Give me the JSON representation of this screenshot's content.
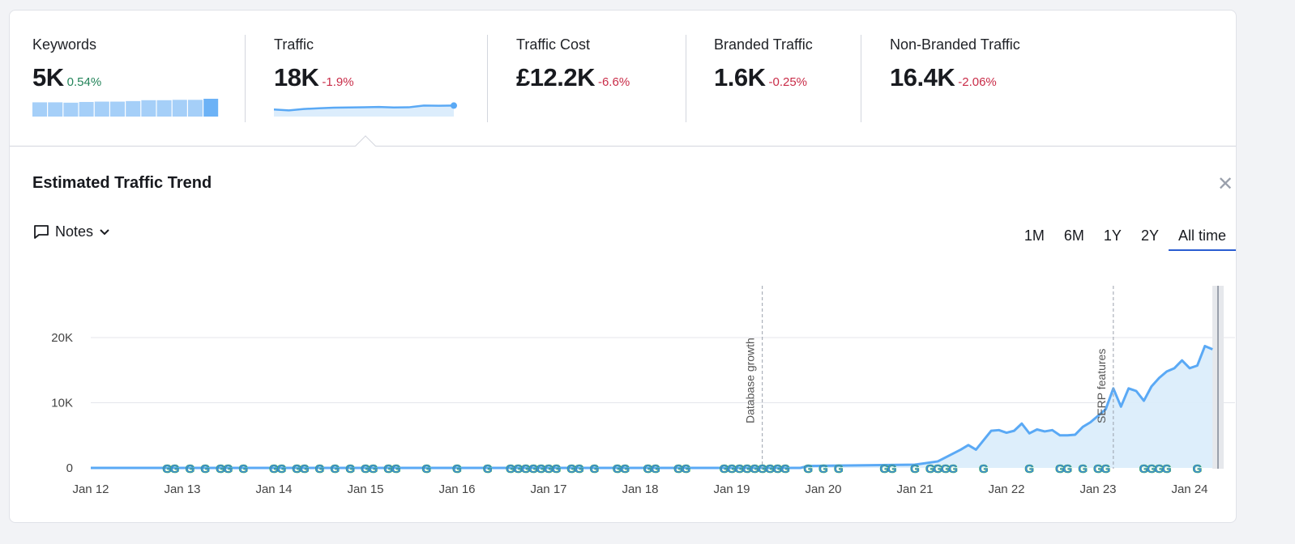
{
  "metrics": [
    {
      "label": "Keywords",
      "value": "5K",
      "change": "0.54%",
      "trend": "up"
    },
    {
      "label": "Traffic",
      "value": "18K",
      "change": "-1.9%",
      "trend": "down"
    },
    {
      "label": "Traffic Cost",
      "value": "£12.2K",
      "change": "-6.6%",
      "trend": "down"
    },
    {
      "label": "Branded Traffic",
      "value": "1.6K",
      "change": "-0.25%",
      "trend": "down"
    },
    {
      "label": "Non-Branded Traffic",
      "value": "16.4K",
      "change": "-2.06%",
      "trend": "down"
    }
  ],
  "keyword_sparkbars": [
    80,
    80,
    78,
    82,
    84,
    84,
    87,
    92,
    92,
    94,
    94,
    100
  ],
  "traffic_sparkline": [
    40,
    30,
    45,
    52,
    58,
    60,
    62,
    66,
    60,
    62,
    80,
    78,
    80
  ],
  "colors": {
    "accent": "#5aa9f5",
    "fill": "#d9ecfb",
    "up": "#24845a",
    "down": "#c92c48",
    "tab_active": "#2a5dd1"
  },
  "panel": {
    "title": "Estimated Traffic Trend",
    "close_icon": "close-icon",
    "notes_label": "Notes"
  },
  "ranges": [
    "1M",
    "6M",
    "1Y",
    "2Y",
    "All time"
  ],
  "active_range": "All time",
  "chart_data": {
    "type": "area",
    "x_ticks": [
      "Jan 12",
      "Jan 13",
      "Jan 14",
      "Jan 15",
      "Jan 16",
      "Jan 17",
      "Jan 18",
      "Jan 19",
      "Jan 20",
      "Jan 21",
      "Jan 22",
      "Jan 23",
      "Jan 24"
    ],
    "y_ticks": [
      "0",
      "10K",
      "20K"
    ],
    "ylim": [
      0,
      20000
    ],
    "grid": true,
    "points": [
      [
        "2012-01",
        0
      ],
      [
        "2019-10",
        0
      ],
      [
        "2019-11",
        300
      ],
      [
        "2021-01",
        500
      ],
      [
        "2021-04",
        1000
      ],
      [
        "2021-07",
        2800
      ],
      [
        "2021-08",
        3500
      ],
      [
        "2021-09",
        2800
      ],
      [
        "2021-11",
        5700
      ],
      [
        "2021-12",
        5800
      ],
      [
        "2022-01",
        5400
      ],
      [
        "2022-02",
        5700
      ],
      [
        "2022-03",
        6800
      ],
      [
        "2022-04",
        5300
      ],
      [
        "2022-05",
        5900
      ],
      [
        "2022-06",
        5600
      ],
      [
        "2022-07",
        5800
      ],
      [
        "2022-08",
        5000
      ],
      [
        "2022-09",
        5000
      ],
      [
        "2022-10",
        5100
      ],
      [
        "2022-11",
        6300
      ],
      [
        "2022-12",
        7000
      ],
      [
        "2023-01",
        8000
      ],
      [
        "2023-02",
        9000
      ],
      [
        "2023-03",
        12200
      ],
      [
        "2023-04",
        9400
      ],
      [
        "2023-05",
        12200
      ],
      [
        "2023-06",
        11800
      ],
      [
        "2023-07",
        10300
      ],
      [
        "2023-08",
        12500
      ],
      [
        "2023-09",
        13800
      ],
      [
        "2023-10",
        14800
      ],
      [
        "2023-11",
        15300
      ],
      [
        "2023-12",
        16500
      ],
      [
        "2024-01",
        15300
      ],
      [
        "2024-02",
        15700
      ],
      [
        "2024-03",
        18700
      ],
      [
        "2024-04",
        18200
      ]
    ],
    "annotations": [
      {
        "date": "2019-05",
        "label": "Database growth"
      },
      {
        "date": "2023-03",
        "label": "SERP features"
      }
    ],
    "google_updates": [
      "2012-11",
      "2012-12",
      "2013-02",
      "2013-04",
      "2013-06",
      "2013-07",
      "2013-09",
      "2014-01",
      "2014-02",
      "2014-04",
      "2014-05",
      "2014-07",
      "2014-09",
      "2014-11",
      "2015-01",
      "2015-02",
      "2015-04",
      "2015-05",
      "2015-09",
      "2016-01",
      "2016-05",
      "2016-08",
      "2016-09",
      "2016-10",
      "2016-11",
      "2016-12",
      "2017-01",
      "2017-02",
      "2017-04",
      "2017-05",
      "2017-07",
      "2017-10",
      "2017-11",
      "2018-02",
      "2018-03",
      "2018-06",
      "2018-07",
      "2018-12",
      "2019-01",
      "2019-02",
      "2019-03",
      "2019-04",
      "2019-05",
      "2019-06",
      "2019-07",
      "2019-08",
      "2019-11",
      "2020-01",
      "2020-03",
      "2020-09",
      "2020-10",
      "2021-01",
      "2021-03",
      "2021-04",
      "2021-05",
      "2021-06",
      "2021-10",
      "2022-04",
      "2022-08",
      "2022-09",
      "2022-11",
      "2023-01",
      "2023-02",
      "2023-07",
      "2023-08",
      "2023-09",
      "2023-10",
      "2024-02"
    ]
  }
}
